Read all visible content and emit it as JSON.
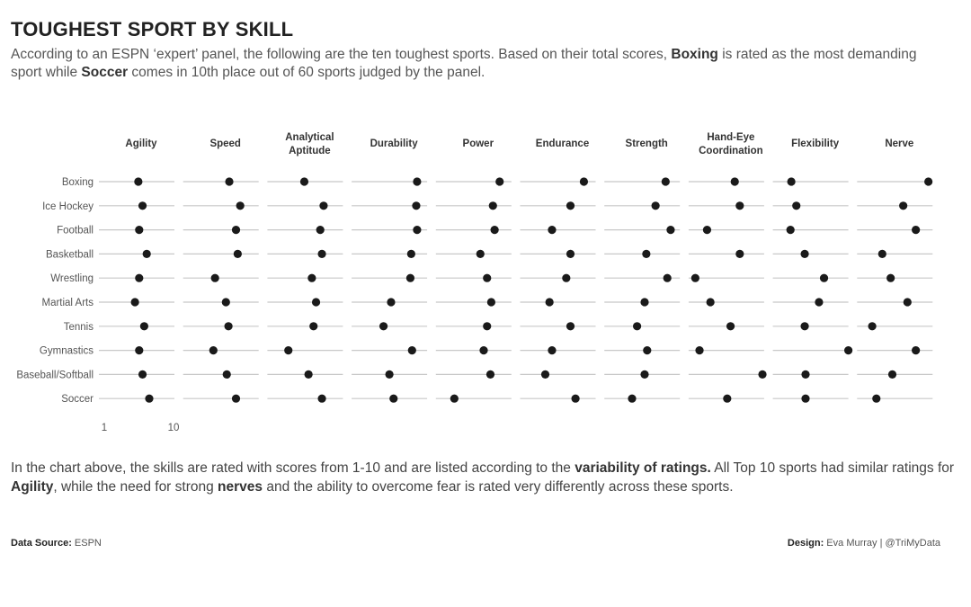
{
  "title": "TOUGHEST SPORT BY SKILL",
  "subtitle": {
    "part1": "According to an ESPN ‘expert’ panel, the following are the ten toughest sports. Based on their total scores, ",
    "bold1": "Boxing",
    "part2": " is rated as the most demanding sport while ",
    "bold2": "Soccer",
    "part3": " comes in 10th place out of 60 sports judged by the panel."
  },
  "note": {
    "part1": "In the chart above, the skills are rated with scores from 1-10 and are listed according to the ",
    "bold1": "variability of ratings.",
    "part2": " All Top 10 sports had similar ratings for ",
    "bold2": "Agility",
    "part3": ", while the need for strong ",
    "bold3": "nerves",
    "part4": " and the ability to overcome fear is rated very differently across these sports."
  },
  "footer": {
    "source_label": "Data Source:",
    "source_value": " ESPN",
    "design_label": "Design:",
    "design_value": " Eva Murray | @TriMyData"
  },
  "chart_data": {
    "type": "scatter",
    "skills": [
      [
        "Agility"
      ],
      [
        "Speed"
      ],
      [
        "Analytical",
        "Aptitude"
      ],
      [
        "Durability"
      ],
      [
        "Power"
      ],
      [
        "Endurance"
      ],
      [
        "Strength"
      ],
      [
        "Hand-Eye",
        "Coordination"
      ],
      [
        "Flexibility"
      ],
      [
        "Nerve"
      ]
    ],
    "sports": [
      "Boxing",
      "Ice Hockey",
      "Football",
      "Basketball",
      "Wrestling",
      "Martial Arts",
      "Tennis",
      "Gymnastics",
      "Baseball/Softball",
      "Soccer"
    ],
    "x_range": [
      1,
      10
    ],
    "x_ticks": [
      1,
      10
    ],
    "grid": false,
    "dot_color": "#1a1a1a",
    "line_color": "#c8c8c8",
    "values": [
      [
        5.7,
        6.5,
        5.4,
        8.8,
        8.6,
        8.6,
        8.3,
        6.5,
        3.2,
        9.5
      ],
      [
        6.2,
        7.8,
        7.7,
        8.7,
        7.8,
        7.0,
        7.1,
        7.1,
        3.8,
        6.5
      ],
      [
        5.8,
        7.3,
        7.3,
        8.8,
        8.0,
        4.8,
        8.9,
        3.2,
        3.1,
        8.0
      ],
      [
        6.7,
        7.5,
        7.5,
        8.1,
        6.3,
        7.0,
        6.0,
        7.1,
        4.8,
        4.0
      ],
      [
        5.8,
        4.8,
        6.3,
        8.0,
        7.1,
        6.5,
        8.5,
        1.8,
        7.1,
        5.0
      ],
      [
        5.3,
        6.1,
        6.8,
        5.7,
        7.6,
        4.5,
        5.8,
        3.6,
        6.5,
        7.0
      ],
      [
        6.4,
        6.4,
        6.5,
        4.8,
        7.1,
        7.0,
        4.9,
        6.0,
        4.8,
        2.8
      ],
      [
        5.8,
        4.6,
        3.5,
        8.2,
        6.7,
        4.8,
        6.1,
        2.3,
        10.0,
        8.0
      ],
      [
        6.2,
        6.2,
        5.9,
        5.5,
        7.5,
        4.0,
        5.8,
        9.8,
        4.9,
        5.2
      ],
      [
        7.0,
        7.3,
        7.5,
        6.0,
        3.2,
        7.6,
        4.3,
        5.6,
        4.9,
        3.3
      ]
    ]
  }
}
